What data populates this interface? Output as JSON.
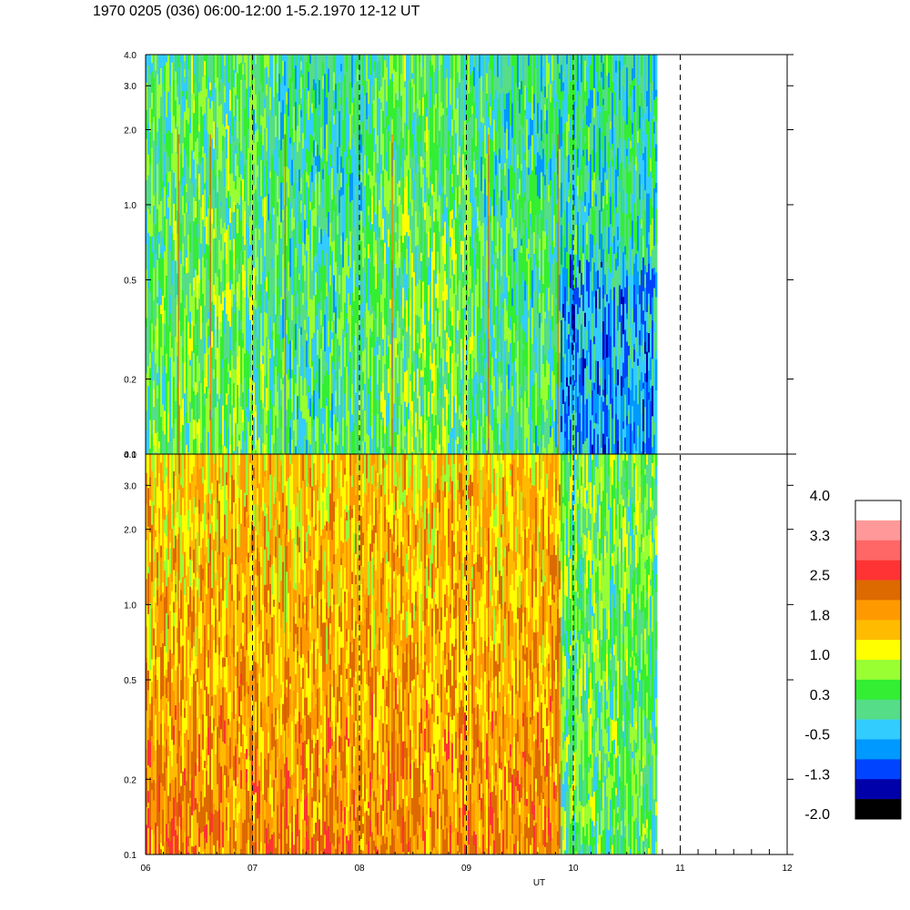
{
  "title": "1970 0205 (036) 06:00-12:00 1-5.2.1970  12-12 UT",
  "chart_data": {
    "type": "heatmap",
    "title": "1970 0205 (036) 06:00-12:00 1-5.2.1970  12-12 UT",
    "xlabel": "UT",
    "x_ticks": [
      "06",
      "07",
      "08",
      "09",
      "10",
      "11",
      "12"
    ],
    "x_range_hours": [
      6,
      12
    ],
    "data_end_hour": 10.78,
    "dashed_verticals_hours": [
      7,
      8,
      9,
      10,
      11
    ],
    "y_scale": "log",
    "y_range": [
      0.1,
      4.0
    ],
    "y_ticks": [
      "0.1",
      "0.2",
      "0.5",
      "1.0",
      "2.0",
      "3.0",
      "4.0"
    ],
    "y_tick_values": [
      0.1,
      0.2,
      0.5,
      1.0,
      2.0,
      3.0,
      4.0
    ],
    "panels": [
      {
        "name": "upper",
        "dominant_level": "0.3 to 1.0",
        "note": "greens and cyans, blue patch after 09.9 UT"
      },
      {
        "name": "lower",
        "dominant_level": "1.0 to 2.5",
        "note": "oranges and yellows, greens after 09.9 UT"
      }
    ],
    "colorbar": {
      "labels": [
        "4.0",
        "3.3",
        "2.5",
        "1.8",
        "1.0",
        "0.3",
        "-0.5",
        "-1.3",
        "-2.0"
      ],
      "colors": [
        "#ffffff",
        "#ff9999",
        "#ff6666",
        "#ff3333",
        "#dd6a00",
        "#ff9900",
        "#ffbb00",
        "#ffff00",
        "#99ff33",
        "#33ee33",
        "#55dd88",
        "#33ccff",
        "#0099ff",
        "#0044ff",
        "#0000aa",
        "#000000"
      ]
    }
  }
}
